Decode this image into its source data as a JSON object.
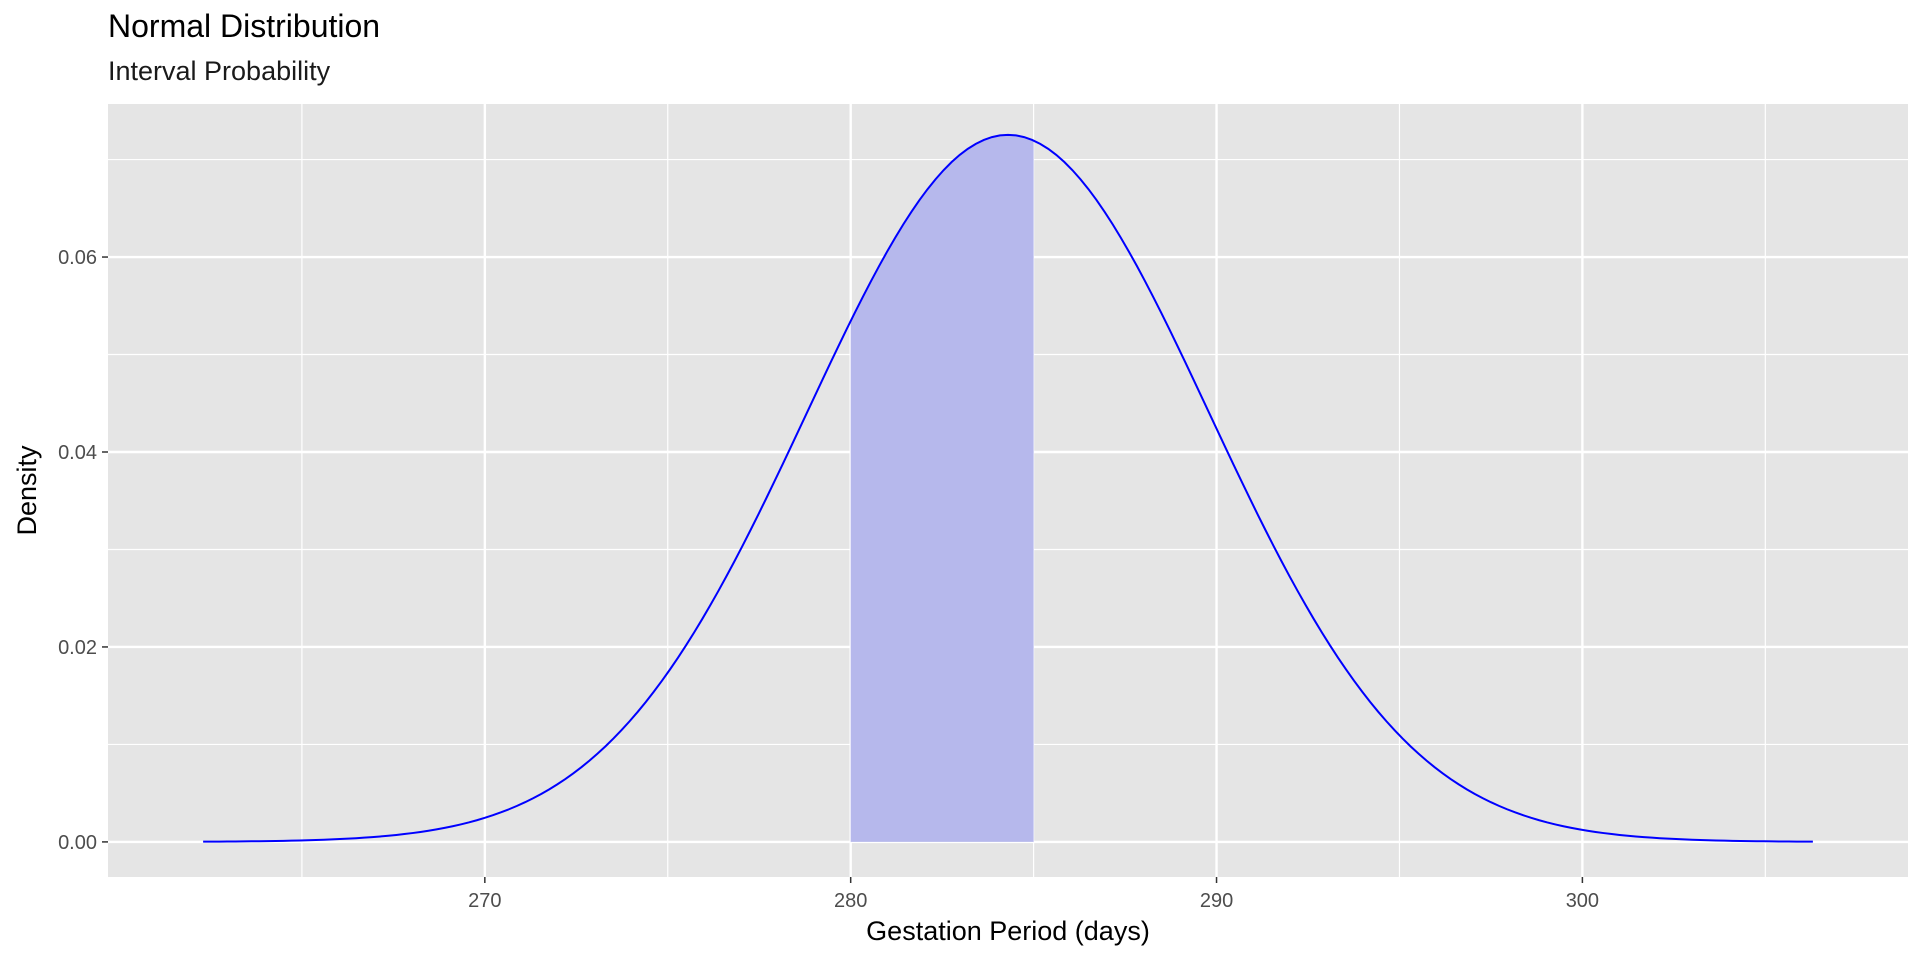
{
  "chart_data": {
    "type": "line",
    "title": "Normal Distribution",
    "subtitle": "Interval Probability",
    "xlabel": "Gestation Period (days)",
    "ylabel": "Density",
    "distribution": {
      "mean": 284.3,
      "sd": 5.5
    },
    "x_range": [
      262.3,
      306.3
    ],
    "shaded_interval": [
      280,
      285
    ],
    "xlim": [
      259.7,
      308.9
    ],
    "ylim": [
      -0.0036,
      0.0757
    ],
    "x_ticks": [
      270,
      280,
      290,
      300
    ],
    "x_tick_labels": [
      "270",
      "280",
      "290",
      "300"
    ],
    "y_ticks": [
      0.0,
      0.02,
      0.04,
      0.06
    ],
    "y_tick_labels": [
      "0.00",
      "0.02",
      "0.04",
      "0.06"
    ],
    "grid": true,
    "line_color": "#0000ff",
    "fill_color": "#b6b8ec",
    "panel_color": "#e5e5e5",
    "grid_color": "#ffffff"
  }
}
